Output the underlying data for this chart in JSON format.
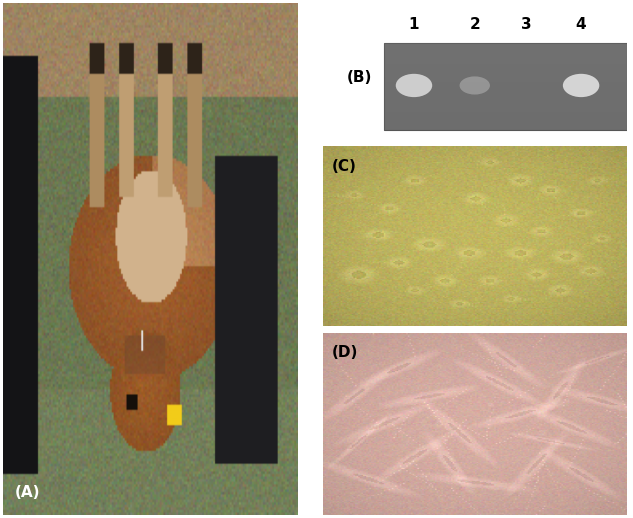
{
  "panel_A_label": "(A)",
  "panel_B_label": "(B)",
  "panel_C_label": "(C)",
  "panel_D_label": "(D)",
  "panel_B_lane_labels": [
    "1",
    "2",
    "3",
    "4"
  ],
  "panel_B_bg_color": "#707070",
  "panel_C_bg_color": "#c8b84a",
  "panel_D_bg_color": "#d4a898",
  "label_fontsize": 11,
  "lane_label_fontsize": 11,
  "border_color": "#888888",
  "figure_bg": "white",
  "gel_band_color_bright": "#e8e8e8",
  "gel_band_color_faint": "#a8a8a8",
  "cell_C_body_color": "#e0d890",
  "cell_C_nucleus_color": "#c8c060",
  "cell_D_body_color": "#e8c8c0",
  "cell_D_fiber_color": "#c8a098"
}
